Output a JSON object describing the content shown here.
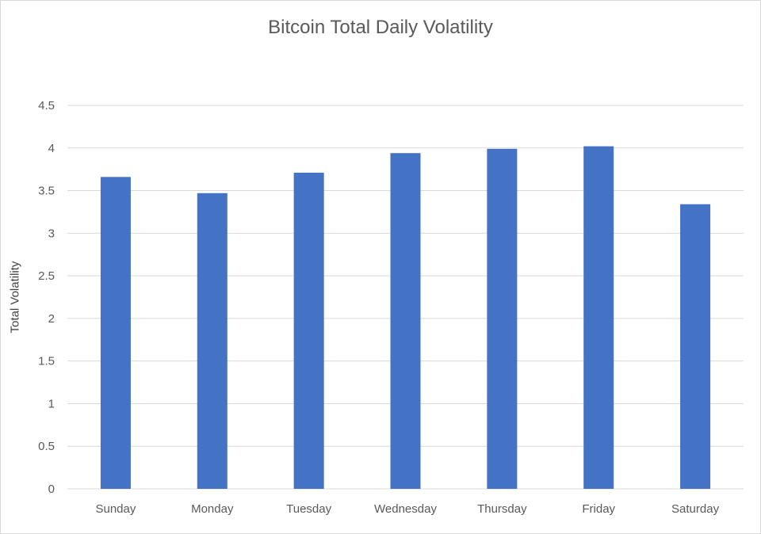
{
  "chart_data": {
    "type": "bar",
    "title": "Bitcoin Total Daily Volatility",
    "xlabel": "",
    "ylabel": "Total Volatility",
    "categories": [
      "Sunday",
      "Monday",
      "Tuesday",
      "Wednesday",
      "Thursday",
      "Friday",
      "Saturday"
    ],
    "values": [
      3.66,
      3.47,
      3.71,
      3.94,
      3.99,
      4.02,
      3.34
    ],
    "ylim": [
      0,
      4.5
    ],
    "yticks": [
      "0",
      "0.5",
      "1",
      "1.5",
      "2",
      "2.5",
      "3",
      "3.5",
      "4",
      "4.5"
    ],
    "grid": true,
    "legend": "none",
    "bar_color": "#4472c4",
    "grid_color": "#d9d9d9"
  }
}
